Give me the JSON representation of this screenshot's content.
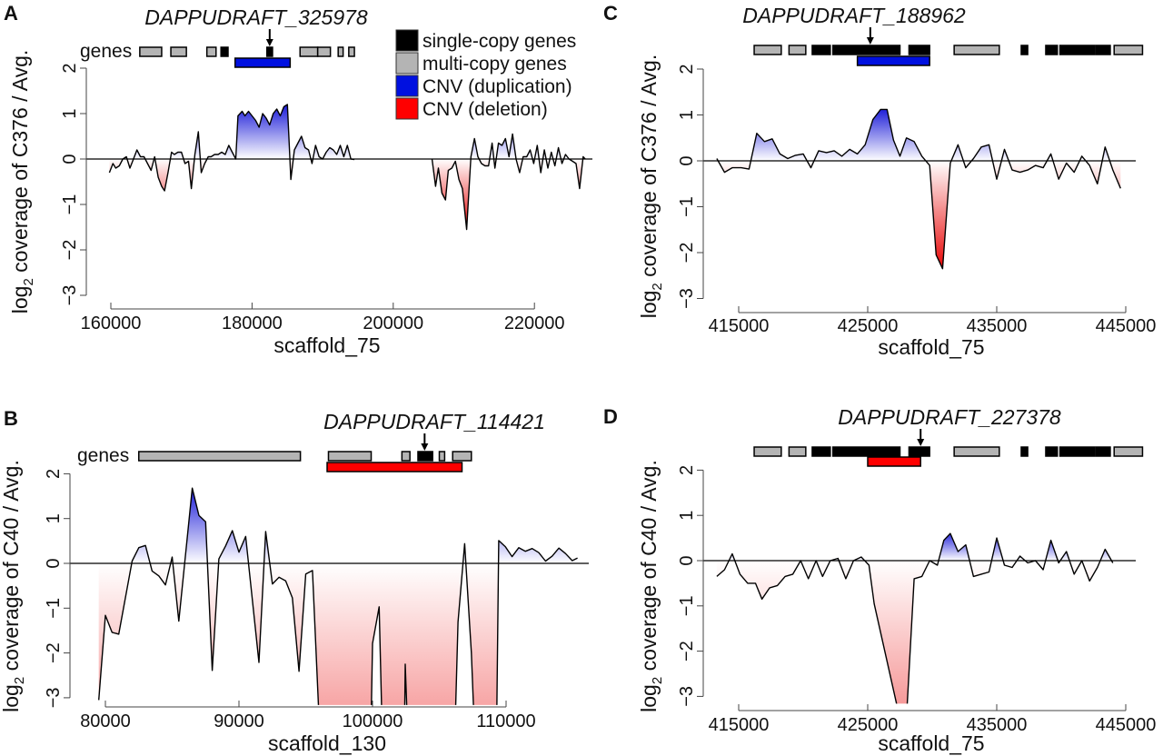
{
  "legend": {
    "items": [
      {
        "label": "single-copy genes",
        "color": "#000000"
      },
      {
        "label": "multi-copy genes",
        "color": "#b4b4b4"
      },
      {
        "label": "CNV (duplication)",
        "color": "#0010e0"
      },
      {
        "label": "CNV (deletion)",
        "color": "#ff0000"
      }
    ]
  },
  "colors": {
    "dup": "#1a1ad8",
    "del": "#e80000",
    "single": "#000000",
    "multi": "#b4b4b4"
  },
  "chart_data": [
    {
      "panel": "A",
      "type": "area",
      "title": "DAPPUDRAFT_325978",
      "xlabel": "scaffold_75",
      "ylabel": {
        "prefix": "log",
        "sub": "2",
        "suffix": " coverage of C376 / Avg."
      },
      "gene_track_label": "genes",
      "x_unit": "kb",
      "xticks": [
        160,
        180,
        200,
        220
      ],
      "xtick_labels": [
        "160000",
        "180000",
        "200000",
        "220000"
      ],
      "yticks": [
        2,
        1,
        0,
        -1,
        -2,
        -3
      ],
      "ytick_labels": [
        "2",
        "1",
        "0",
        "−1",
        "−2",
        "−3"
      ],
      "ylim": [
        -3,
        2
      ],
      "target_x": 182.5,
      "genes": [
        {
          "start": 164.1,
          "end": 167.2,
          "type": "multi"
        },
        {
          "start": 168.5,
          "end": 170.7,
          "type": "multi"
        },
        {
          "start": 173.6,
          "end": 174.9,
          "type": "multi"
        },
        {
          "start": 175.6,
          "end": 176.6,
          "type": "single"
        },
        {
          "start": 182.1,
          "end": 182.9,
          "type": "single"
        },
        {
          "start": 186.8,
          "end": 189.3,
          "type": "multi"
        },
        {
          "start": 189.3,
          "end": 191.1,
          "type": "multi"
        },
        {
          "start": 192.2,
          "end": 192.9,
          "type": "multi"
        },
        {
          "start": 193.7,
          "end": 194.5,
          "type": "multi"
        }
      ],
      "cnv": {
        "start": 177.6,
        "end": 185.4,
        "type": "dup"
      },
      "segments": [
        {
          "x": [
            159.8,
            160.3,
            160.7,
            161.2,
            161.7,
            162.2,
            162.7,
            163.2,
            163.7,
            164.2,
            164.7,
            165.2,
            165.7,
            166.2,
            166.7,
            167.2,
            167.6,
            168.1,
            168.6,
            169.0,
            169.5,
            170.0,
            170.5,
            171.0,
            171.4,
            171.9,
            172.4,
            172.8,
            173.3,
            173.8,
            174.2,
            174.7,
            175.2,
            175.7,
            176.2,
            176.7,
            177.2,
            177.7,
            178.0,
            178.6,
            179.0,
            179.5,
            180.0,
            180.5,
            181.0,
            181.5,
            182.0,
            182.5,
            183.0,
            183.5,
            184.0,
            184.5,
            185.0,
            185.5,
            186.0,
            186.5,
            187.0,
            187.5,
            188.0,
            188.5,
            189.0,
            189.5,
            190.0,
            190.5,
            191.0,
            191.5,
            192.0,
            192.5,
            193.0,
            193.5,
            194.0,
            194.5
          ],
          "y": [
            -0.3,
            -0.1,
            -0.2,
            -0.15,
            0,
            0.05,
            -0.2,
            0,
            0.2,
            0.05,
            0.05,
            -0.1,
            -0.25,
            0.05,
            -0.4,
            -0.6,
            -0.7,
            -0.3,
            0.15,
            0.1,
            0.15,
            0.15,
            -0.1,
            -0.05,
            -0.65,
            0.1,
            0.6,
            -0.3,
            -0.1,
            0.05,
            0.05,
            0.1,
            0.1,
            0.15,
            0.1,
            0.3,
            0.15,
            0.0,
            0.95,
            1.05,
            0.95,
            1.05,
            0.95,
            0.85,
            0.7,
            1.0,
            0.9,
            0.75,
            1.0,
            1.1,
            0.95,
            1.15,
            1.2,
            -0.45,
            0.2,
            0.35,
            0.5,
            0.25,
            0.2,
            -0.1,
            0.3,
            0.05,
            0.0,
            0.15,
            0.25,
            0.2,
            0.1,
            0.3,
            0.05,
            0.3,
            0.0,
            -0.01
          ]
        },
        {
          "x": [
            205.5,
            206.0,
            206.4,
            206.9,
            207.4,
            207.8,
            208.3,
            208.8,
            209.3,
            209.8,
            210.4,
            211.0,
            211.5,
            212.0,
            212.5,
            213.0,
            213.5,
            214.0,
            214.4,
            214.9,
            215.4,
            215.9,
            216.4,
            216.9,
            217.4,
            217.9,
            218.4,
            218.9,
            219.4,
            219.9,
            220.4,
            220.9,
            221.4,
            221.9,
            222.4,
            222.9,
            223.4,
            223.9,
            224.4,
            224.9,
            225.4,
            225.9,
            226.4,
            226.9,
            227.2
          ],
          "y": [
            0,
            -0.6,
            -0.2,
            -0.75,
            -0.9,
            -0.25,
            -0.2,
            -0.05,
            -0.45,
            -0.65,
            -1.55,
            0.05,
            0.45,
            0.05,
            -0.1,
            -0.15,
            -0.15,
            0.35,
            -0.2,
            0.35,
            0.3,
            0.45,
            0.05,
            0.55,
            0.0,
            -0.3,
            0.05,
            0.05,
            0.2,
            -0.1,
            0.3,
            -0.3,
            0.2,
            -0.2,
            0.15,
            -0.15,
            0.25,
            -0.1,
            0.1,
            0.0,
            -0.05,
            -0.1,
            -0.65,
            0.05,
            0.0
          ]
        }
      ]
    },
    {
      "panel": "B",
      "type": "area",
      "title": "DAPPUDRAFT_114421",
      "xlabel": "scaffold_130",
      "ylabel": {
        "prefix": "log",
        "sub": "2",
        "suffix": " coverage of C40 / Avg."
      },
      "gene_track_label": "genes",
      "x_unit": "kb",
      "xticks": [
        80,
        90,
        100,
        110
      ],
      "xtick_labels": [
        "80000",
        "90000",
        "100000",
        "110000"
      ],
      "yticks": [
        2,
        1,
        0,
        -1,
        -2,
        -3
      ],
      "ytick_labels": [
        "2",
        "1",
        "0",
        "−1",
        "−2",
        "−3"
      ],
      "ylim": [
        -3,
        2
      ],
      "target_x": 103.9,
      "genes": [
        {
          "start": 82.5,
          "end": 94.6,
          "type": "multi"
        },
        {
          "start": 96.7,
          "end": 99.9,
          "type": "multi"
        },
        {
          "start": 102.2,
          "end": 102.8,
          "type": "multi"
        },
        {
          "start": 103.4,
          "end": 104.5,
          "type": "single"
        },
        {
          "start": 105.0,
          "end": 105.4,
          "type": "multi"
        },
        {
          "start": 106.0,
          "end": 107.4,
          "type": "multi"
        }
      ],
      "cnv": {
        "start": 96.6,
        "end": 106.7,
        "type": "del"
      },
      "segments": [
        {
          "x": [
            79.5,
            80.0,
            80.5,
            81.0,
            82.0,
            82.5,
            83.0,
            83.5,
            84.0,
            84.5,
            85.0,
            85.5,
            86.5,
            87.0,
            87.5,
            88.0,
            88.5,
            89.0,
            89.5,
            90.0,
            90.5,
            91.5,
            92.0,
            92.5,
            93.0,
            93.5,
            94.0,
            94.5,
            95.0,
            95.5,
            96.0,
            99.9,
            100.0,
            100.5,
            100.7,
            102.4,
            102.45,
            102.6,
            106.2,
            106.4,
            106.9,
            107.4,
            107.6,
            109.3,
            109.45,
            109.95,
            110.45,
            110.95,
            111.45,
            111.95,
            112.45,
            112.95,
            113.45,
            113.95,
            114.45,
            114.95,
            115.35
          ],
          "y": [
            -3.05,
            -1.16,
            -1.54,
            -1.58,
            0.05,
            0.35,
            0.4,
            -0.17,
            -0.28,
            -0.48,
            0.14,
            -1.29,
            1.68,
            1.07,
            0.93,
            -2.39,
            0.1,
            0.39,
            0.73,
            0.25,
            0.6,
            -2.21,
            0.71,
            -0.46,
            -0.31,
            -0.39,
            -0.77,
            -2.41,
            -0.24,
            -0.16,
            -3.5,
            -3.5,
            -1.79,
            -0.97,
            -3.5,
            -3.5,
            -2.25,
            -3.5,
            -3.5,
            -1.31,
            0.44,
            -2.0,
            -3.5,
            -3.5,
            0.51,
            0.37,
            0.15,
            0.35,
            0.27,
            0.33,
            0.24,
            0.05,
            0.16,
            0.34,
            0.22,
            0.06,
            0.12
          ]
        }
      ]
    },
    {
      "panel": "C",
      "type": "area",
      "title": "DAPPUDRAFT_188962",
      "xlabel": "scaffold_75",
      "ylabel": {
        "prefix": "log",
        "sub": "2",
        "suffix": " coverage of C376 / Avg."
      },
      "x_unit": "kb",
      "xticks": [
        415,
        425,
        435,
        445
      ],
      "xtick_labels": [
        "415000",
        "425000",
        "435000",
        "445000"
      ],
      "yticks": [
        2,
        1,
        0,
        -1,
        -2,
        -3
      ],
      "ytick_labels": [
        "2",
        "1",
        "0",
        "−1",
        "−2",
        "−3"
      ],
      "ylim": [
        -3,
        2
      ],
      "target_x": 425.2,
      "genes": [
        {
          "start": 416.2,
          "end": 418.3,
          "type": "multi"
        },
        {
          "start": 418.9,
          "end": 420.2,
          "type": "multi"
        },
        {
          "start": 420.7,
          "end": 422.1,
          "type": "single"
        },
        {
          "start": 422.3,
          "end": 427.5,
          "type": "single"
        },
        {
          "start": 428.2,
          "end": 429.8,
          "type": "single"
        },
        {
          "start": 431.7,
          "end": 435.2,
          "type": "multi"
        },
        {
          "start": 436.9,
          "end": 437.4,
          "type": "single"
        },
        {
          "start": 438.8,
          "end": 439.7,
          "type": "single"
        },
        {
          "start": 439.9,
          "end": 442.6,
          "type": "single"
        },
        {
          "start": 442.7,
          "end": 443.8,
          "type": "single"
        },
        {
          "start": 444.1,
          "end": 446.3,
          "type": "multi"
        }
      ],
      "cnv": {
        "start": 424.2,
        "end": 429.8,
        "type": "dup"
      },
      "segments": [
        {
          "x": [
            413.3,
            413.9,
            414.5,
            415.2,
            415.8,
            416.4,
            417.0,
            417.6,
            418.2,
            418.8,
            419.4,
            420.0,
            420.6,
            421.2,
            421.8,
            422.4,
            423.0,
            423.6,
            424.2,
            424.8,
            425.4,
            426.0,
            426.5,
            427.0,
            427.5,
            428.0,
            428.6,
            429.2,
            429.8,
            430.3,
            430.8,
            431.4,
            432.0,
            432.6,
            433.2,
            433.8,
            434.4,
            435.0,
            435.6,
            436.2,
            436.8,
            437.4,
            438.0,
            438.6,
            439.2,
            439.8,
            440.4,
            441.0,
            441.6,
            442.2,
            442.8,
            443.4,
            444.0,
            444.6
          ],
          "y": [
            0.05,
            -0.25,
            -0.15,
            -0.15,
            -0.18,
            0.6,
            0.42,
            0.48,
            0.15,
            0.05,
            0.12,
            0.15,
            -0.15,
            0.22,
            0.18,
            0.22,
            0.1,
            0.25,
            0.15,
            0.35,
            0.9,
            1.12,
            1.12,
            0.45,
            0.1,
            0.5,
            0.42,
            0.1,
            -0.1,
            -2.05,
            -2.35,
            -0.05,
            0.35,
            -0.15,
            0.05,
            0.3,
            0.35,
            -0.4,
            0.25,
            -0.2,
            -0.25,
            -0.2,
            -0.1,
            -0.15,
            0.15,
            -0.4,
            -0.05,
            -0.25,
            0.1,
            -0.1,
            -0.5,
            0.3,
            -0.2,
            -0.6
          ]
        }
      ]
    },
    {
      "panel": "D",
      "type": "area",
      "title": "DAPPUDRAFT_227378",
      "xlabel": "scaffold_75",
      "ylabel": {
        "prefix": "log",
        "sub": "2",
        "suffix": " coverage of C40 / Avg."
      },
      "x_unit": "kb",
      "xticks": [
        415,
        425,
        435,
        445
      ],
      "xtick_labels": [
        "415000",
        "425000",
        "435000",
        "445000"
      ],
      "yticks": [
        2,
        1,
        0,
        -1,
        -2,
        -3
      ],
      "ytick_labels": [
        "2",
        "1",
        "0",
        "−1",
        "−2",
        "−3"
      ],
      "ylim": [
        -3,
        2
      ],
      "target_x": 429.1,
      "genes": [
        {
          "start": 416.2,
          "end": 418.3,
          "type": "multi"
        },
        {
          "start": 418.9,
          "end": 420.2,
          "type": "multi"
        },
        {
          "start": 420.7,
          "end": 422.1,
          "type": "single"
        },
        {
          "start": 422.3,
          "end": 427.5,
          "type": "single"
        },
        {
          "start": 428.2,
          "end": 429.8,
          "type": "single"
        },
        {
          "start": 431.7,
          "end": 435.2,
          "type": "multi"
        },
        {
          "start": 436.9,
          "end": 437.4,
          "type": "single"
        },
        {
          "start": 438.8,
          "end": 439.7,
          "type": "single"
        },
        {
          "start": 439.9,
          "end": 442.6,
          "type": "single"
        },
        {
          "start": 442.7,
          "end": 443.8,
          "type": "single"
        },
        {
          "start": 444.1,
          "end": 446.3,
          "type": "multi"
        }
      ],
      "cnv": {
        "start": 425.0,
        "end": 429.1,
        "type": "del"
      },
      "segments": [
        {
          "x": [
            413.3,
            413.9,
            414.5,
            415.1,
            415.7,
            416.3,
            416.8,
            417.4,
            418.0,
            418.6,
            419.2,
            419.8,
            420.4,
            421.0,
            421.5,
            422.1,
            422.7,
            423.3,
            423.9,
            424.5,
            425.1,
            425.5,
            427.5,
            428.0,
            428.6,
            429.2,
            429.8,
            430.4,
            430.9,
            431.4,
            432.0,
            432.6,
            433.2,
            433.8,
            434.4,
            435.0,
            435.6,
            436.2,
            436.8,
            437.4,
            438.0,
            438.6,
            439.2,
            439.8,
            440.4,
            441.0,
            441.6,
            442.2,
            442.8,
            443.4,
            444.0
          ],
          "y": [
            -0.35,
            -0.2,
            0.15,
            -0.3,
            -0.5,
            -0.5,
            -0.85,
            -0.6,
            -0.55,
            -0.35,
            -0.3,
            0.0,
            -0.4,
            0.0,
            -0.35,
            0.0,
            0.05,
            -0.4,
            0.0,
            0.08,
            -0.1,
            -0.95,
            -3.5,
            -3.5,
            -0.4,
            -0.35,
            0.0,
            -0.1,
            0.45,
            0.6,
            0.2,
            0.35,
            -0.35,
            -0.3,
            -0.25,
            0.5,
            -0.1,
            -0.15,
            0.1,
            -0.05,
            0.0,
            -0.2,
            0.45,
            -0.05,
            0.2,
            -0.3,
            0.0,
            -0.45,
            -0.15,
            0.25,
            -0.05
          ]
        }
      ]
    }
  ]
}
